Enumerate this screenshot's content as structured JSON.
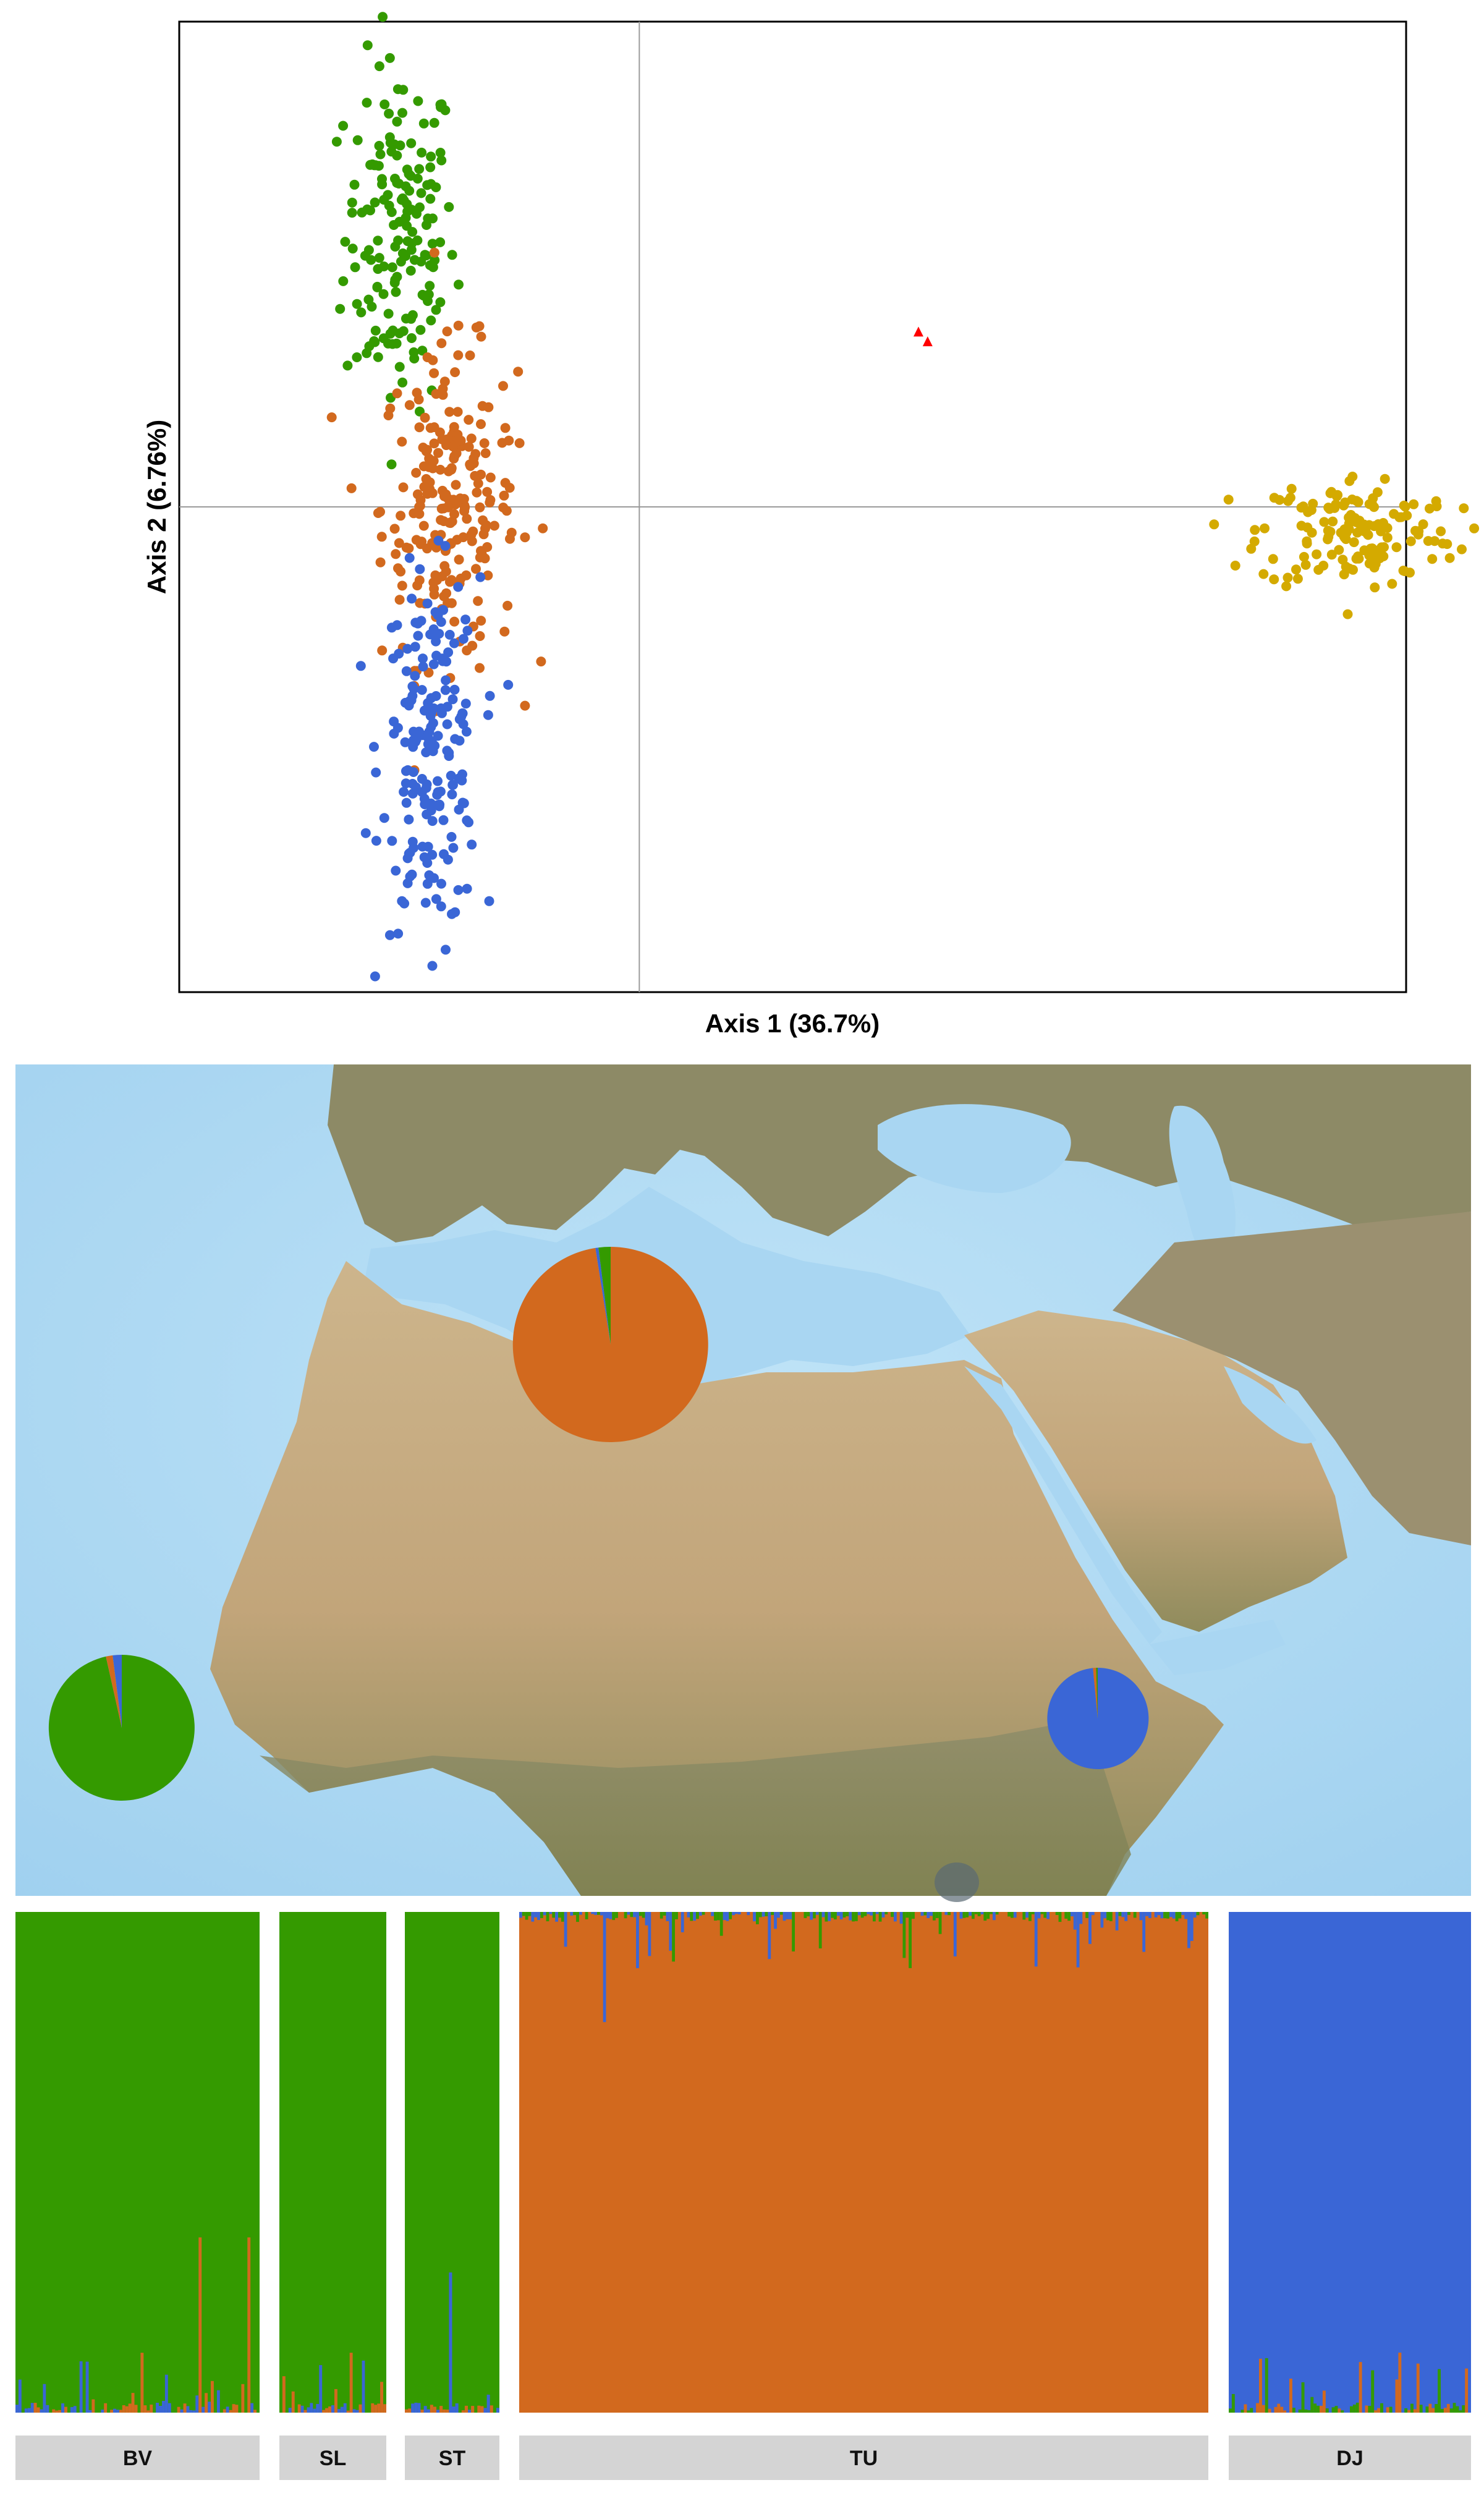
{
  "chart_data": [
    {
      "type": "scatter",
      "title": "",
      "xlabel": "Axis 1 (36.7%)",
      "ylabel": "Axis 2 (6.76%)",
      "xlim": [
        -1.0,
        1.0
      ],
      "ylim": [
        -1.0,
        1.0
      ],
      "grid": false,
      "zero_lines": true,
      "series": [
        {
          "color": "#349a00",
          "marker": "circle",
          "cluster": {
            "cx": -0.64,
            "cy": 0.56,
            "sx": 0.045,
            "sy": 0.18,
            "n": 170
          }
        },
        {
          "color": "#d2691e",
          "marker": "circle",
          "cluster": {
            "cx": -0.56,
            "cy": 0.0,
            "sx": 0.055,
            "sy": 0.16,
            "n": 230
          }
        },
        {
          "color": "#3a66d6",
          "marker": "circle",
          "cluster": {
            "cx": -0.59,
            "cy": -0.51,
            "sx": 0.04,
            "sy": 0.18,
            "n": 190
          }
        },
        {
          "color": "#d4aa00",
          "marker": "circle",
          "cluster": {
            "cx": 0.92,
            "cy": -0.05,
            "sx": 0.08,
            "sy": 0.06,
            "n": 150
          }
        },
        {
          "color": "#ff0000",
          "marker": "triangle",
          "points": [
            [
              0.205,
              0.36
            ],
            [
              0.22,
              0.34
            ]
          ]
        }
      ]
    },
    {
      "type": "pie",
      "map_background": true,
      "pies": [
        {
          "location": "Mediterranean",
          "slices": [
            {
              "color": "#d2691e",
              "value": 0.975
            },
            {
              "color": "#3a66d6",
              "value": 0.005
            },
            {
              "color": "#349a00",
              "value": 0.02
            }
          ]
        },
        {
          "location": "West Africa coast",
          "slices": [
            {
              "color": "#349a00",
              "value": 0.965
            },
            {
              "color": "#d2691e",
              "value": 0.015
            },
            {
              "color": "#3a66d6",
              "value": 0.02
            }
          ]
        },
        {
          "location": "Horn of Africa",
          "slices": [
            {
              "color": "#3a66d6",
              "value": 0.985
            },
            {
              "color": "#d2691e",
              "value": 0.01
            },
            {
              "color": "#349a00",
              "value": 0.005
            }
          ]
        }
      ]
    },
    {
      "type": "bar",
      "subtype": "stacked-admixture",
      "colors": {
        "green": "#349a00",
        "orange": "#d2691e",
        "blue": "#3a66d6"
      },
      "groups": [
        {
          "label": "BV",
          "dominant": "green",
          "n_samples": 80
        },
        {
          "label": "SL",
          "dominant": "green",
          "n_samples": 35
        },
        {
          "label": "ST",
          "dominant": "green",
          "n_samples": 30
        },
        {
          "label": "TU",
          "dominant": "orange",
          "n_samples": 230
        },
        {
          "label": "DJ",
          "dominant": "blue",
          "n_samples": 80
        }
      ],
      "ylim": [
        0,
        1
      ]
    }
  ]
}
